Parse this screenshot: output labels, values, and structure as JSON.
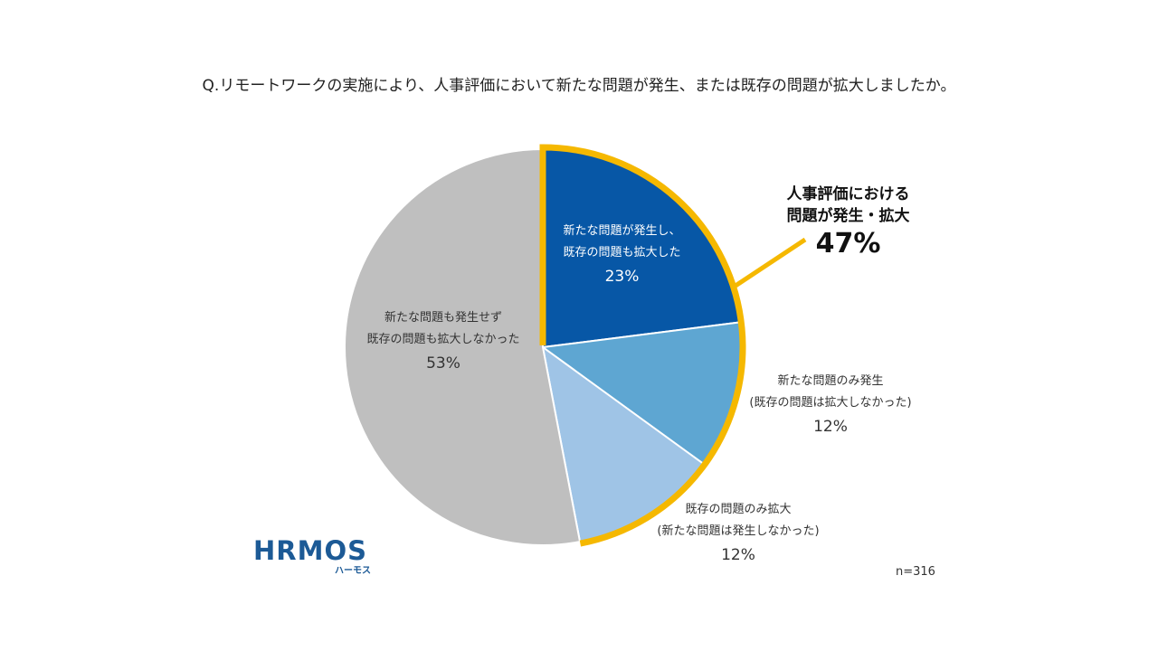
{
  "title": "Q.リモートワークの実施により、人事評価において新たな問題が発生、または既存の問題が拡大しましたか。",
  "chart_data": {
    "type": "pie",
    "slices": [
      {
        "line1": "新たな問題が発生し、",
        "line2": "既存の問題も拡大した",
        "pct_label": "23%",
        "value": 23,
        "color": "#0757a6"
      },
      {
        "line1": "新たな問題のみ発生",
        "line2": "(既存の問題は拡大しなかった)",
        "pct_label": "12%",
        "value": 12,
        "color": "#5ea6d2"
      },
      {
        "line1": "既存の問題のみ拡大",
        "line2": "(新たな問題は発生しなかった)",
        "pct_label": "12%",
        "value": 12,
        "color": "#9fc4e6"
      },
      {
        "line1": "新たな問題も発生せず",
        "line2": "既存の問題も拡大しなかった",
        "pct_label": "53%",
        "value": 53,
        "color": "#bfbfbf"
      }
    ],
    "highlight": {
      "line1": "人事評価における",
      "line2": "問題が発生・拡大",
      "value_label": "47%",
      "color": "#f5b800"
    }
  },
  "footer": {
    "n_label": "n=316",
    "logo_text": "HRMOS",
    "logo_subtext": "ハーモス"
  }
}
